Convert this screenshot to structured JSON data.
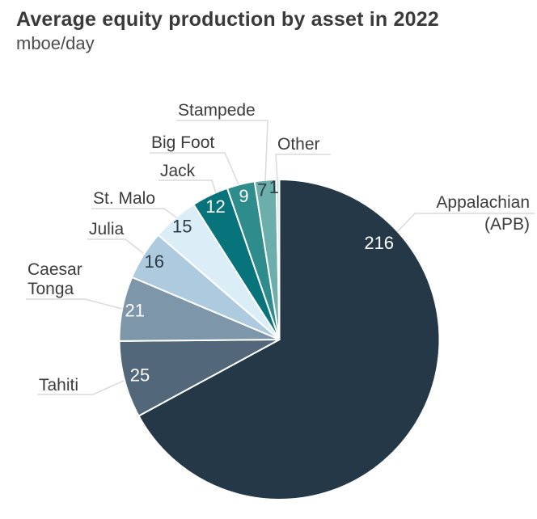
{
  "header": {
    "title": "Average equity production by asset in 2022",
    "subtitle": "mboe/day"
  },
  "chart_data": {
    "type": "pie",
    "title": "Average equity production by asset in 2022",
    "units": "mboe/day",
    "direction": "clockwise",
    "start_angle_deg": 0,
    "legend": "none",
    "leader_line_color": "#dadada",
    "label_text_color": "#3c3c3c",
    "slices": [
      {
        "label": "Appalachian (APB)",
        "label_lines": [
          "Appalachian",
          "(APB)"
        ],
        "value": 216,
        "color": "#253847",
        "value_color": "#ffffff"
      },
      {
        "label": "Tahiti",
        "label_lines": [
          "Tahiti"
        ],
        "value": 25,
        "color": "#52677a",
        "value_color": "#ffffff"
      },
      {
        "label": "Caesar Tonga",
        "label_lines": [
          "Caesar",
          "Tonga"
        ],
        "value": 21,
        "color": "#7e96aa",
        "value_color": "#ffffff"
      },
      {
        "label": "Julia",
        "label_lines": [
          "Julia"
        ],
        "value": 16,
        "color": "#aecade",
        "value_color": "#2f3b46"
      },
      {
        "label": "St. Malo",
        "label_lines": [
          "St. Malo"
        ],
        "value": 15,
        "color": "#dbeef8",
        "value_color": "#2f3b46"
      },
      {
        "label": "Jack",
        "label_lines": [
          "Jack"
        ],
        "value": 12,
        "color": "#07737a",
        "value_color": "#ffffff"
      },
      {
        "label": "Big Foot",
        "label_lines": [
          "Big Foot"
        ],
        "value": 9,
        "color": "#2f8c8d",
        "value_color": "#ffffff"
      },
      {
        "label": "Stampede",
        "label_lines": [
          "Stampede"
        ],
        "value": 7,
        "color": "#6caeab",
        "value_color": "#2f3b46"
      },
      {
        "label": "Other",
        "label_lines": [
          "Other"
        ],
        "value": 1,
        "color": "#c5dfda",
        "value_color": "#2f3b46"
      }
    ]
  }
}
